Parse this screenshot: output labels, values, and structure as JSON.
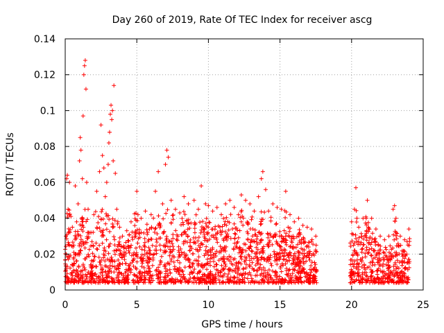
{
  "chart_data": {
    "type": "scatter",
    "title": "Day 260 of 2019, Rate Of TEC Index for receiver ascg",
    "xlabel": "GPS time / hours",
    "ylabel": "ROTI / TECUs",
    "xlim": [
      0,
      25
    ],
    "ylim": [
      0,
      0.14
    ],
    "xticks": [
      "0",
      "5",
      "10",
      "15",
      "20",
      "25"
    ],
    "yticks": [
      "0",
      "0.02",
      "0.04",
      "0.06",
      "0.08",
      "0.1",
      "0.12",
      "0.14"
    ],
    "grid": true,
    "marker": "+",
    "color": "#ff0000",
    "series": [
      {
        "name": "ROTI",
        "points": [
          [
            0.05,
            0.03
          ],
          [
            0.1,
            0.062
          ],
          [
            0.15,
            0.064
          ],
          [
            0.2,
            0.045
          ],
          [
            0.3,
            0.06
          ],
          [
            0.4,
            0.041
          ],
          [
            0.5,
            0.035
          ],
          [
            0.6,
            0.025
          ],
          [
            0.7,
            0.058
          ],
          [
            0.8,
            0.038
          ],
          [
            0.9,
            0.048
          ],
          [
            1.0,
            0.072
          ],
          [
            1.05,
            0.085
          ],
          [
            1.1,
            0.078
          ],
          [
            1.2,
            0.062
          ],
          [
            1.25,
            0.097
          ],
          [
            1.3,
            0.12
          ],
          [
            1.35,
            0.125
          ],
          [
            1.4,
            0.128
          ],
          [
            1.45,
            0.112
          ],
          [
            1.5,
            0.06
          ],
          [
            1.6,
            0.045
          ],
          [
            1.8,
            0.032
          ],
          [
            2.0,
            0.042
          ],
          [
            2.2,
            0.055
          ],
          [
            2.4,
            0.066
          ],
          [
            2.5,
            0.092
          ],
          [
            2.6,
            0.075
          ],
          [
            2.7,
            0.068
          ],
          [
            2.8,
            0.052
          ],
          [
            2.9,
            0.06
          ],
          [
            3.0,
            0.07
          ],
          [
            3.05,
            0.082
          ],
          [
            3.1,
            0.088
          ],
          [
            3.15,
            0.098
          ],
          [
            3.2,
            0.103
          ],
          [
            3.25,
            0.095
          ],
          [
            3.3,
            0.1
          ],
          [
            3.35,
            0.072
          ],
          [
            3.4,
            0.114
          ],
          [
            3.5,
            0.065
          ],
          [
            3.6,
            0.045
          ],
          [
            3.8,
            0.035
          ],
          [
            4.0,
            0.03
          ],
          [
            4.3,
            0.033
          ],
          [
            4.6,
            0.038
          ],
          [
            5.0,
            0.055
          ],
          [
            5.3,
            0.04
          ],
          [
            5.6,
            0.044
          ],
          [
            6.0,
            0.042
          ],
          [
            6.3,
            0.055
          ],
          [
            6.5,
            0.066
          ],
          [
            6.8,
            0.048
          ],
          [
            7.0,
            0.07
          ],
          [
            7.1,
            0.078
          ],
          [
            7.2,
            0.074
          ],
          [
            7.4,
            0.05
          ],
          [
            7.7,
            0.045
          ],
          [
            8.0,
            0.043
          ],
          [
            8.3,
            0.052
          ],
          [
            8.6,
            0.048
          ],
          [
            9.0,
            0.05
          ],
          [
            9.3,
            0.045
          ],
          [
            9.5,
            0.058
          ],
          [
            9.8,
            0.048
          ],
          [
            10.0,
            0.047
          ],
          [
            10.3,
            0.044
          ],
          [
            10.6,
            0.046
          ],
          [
            10.9,
            0.042
          ],
          [
            11.2,
            0.048
          ],
          [
            11.5,
            0.05
          ],
          [
            11.8,
            0.046
          ],
          [
            12.1,
            0.042
          ],
          [
            12.3,
            0.053
          ],
          [
            12.6,
            0.05
          ],
          [
            12.9,
            0.048
          ],
          [
            13.2,
            0.044
          ],
          [
            13.5,
            0.052
          ],
          [
            13.7,
            0.062
          ],
          [
            13.8,
            0.066
          ],
          [
            14.0,
            0.056
          ],
          [
            14.2,
            0.044
          ],
          [
            14.5,
            0.048
          ],
          [
            14.8,
            0.046
          ],
          [
            15.1,
            0.045
          ],
          [
            15.4,
            0.055
          ],
          [
            15.7,
            0.042
          ],
          [
            16.0,
            0.038
          ],
          [
            16.3,
            0.04
          ],
          [
            16.6,
            0.036
          ],
          [
            16.9,
            0.035
          ],
          [
            17.2,
            0.034
          ],
          [
            17.5,
            0.03
          ],
          [
            20.0,
            0.038
          ],
          [
            20.2,
            0.045
          ],
          [
            20.3,
            0.057
          ],
          [
            20.5,
            0.035
          ],
          [
            20.8,
            0.04
          ],
          [
            21.1,
            0.05
          ],
          [
            21.4,
            0.04
          ],
          [
            21.7,
            0.034
          ],
          [
            22.0,
            0.03
          ],
          [
            22.3,
            0.028
          ],
          [
            22.6,
            0.03
          ],
          [
            22.9,
            0.045
          ],
          [
            23.0,
            0.047
          ],
          [
            23.1,
            0.04
          ],
          [
            23.4,
            0.03
          ],
          [
            23.7,
            0.028
          ],
          [
            24.0,
            0.034
          ]
        ]
      }
    ],
    "gaps": [
      [
        17.6,
        19.9
      ]
    ]
  }
}
